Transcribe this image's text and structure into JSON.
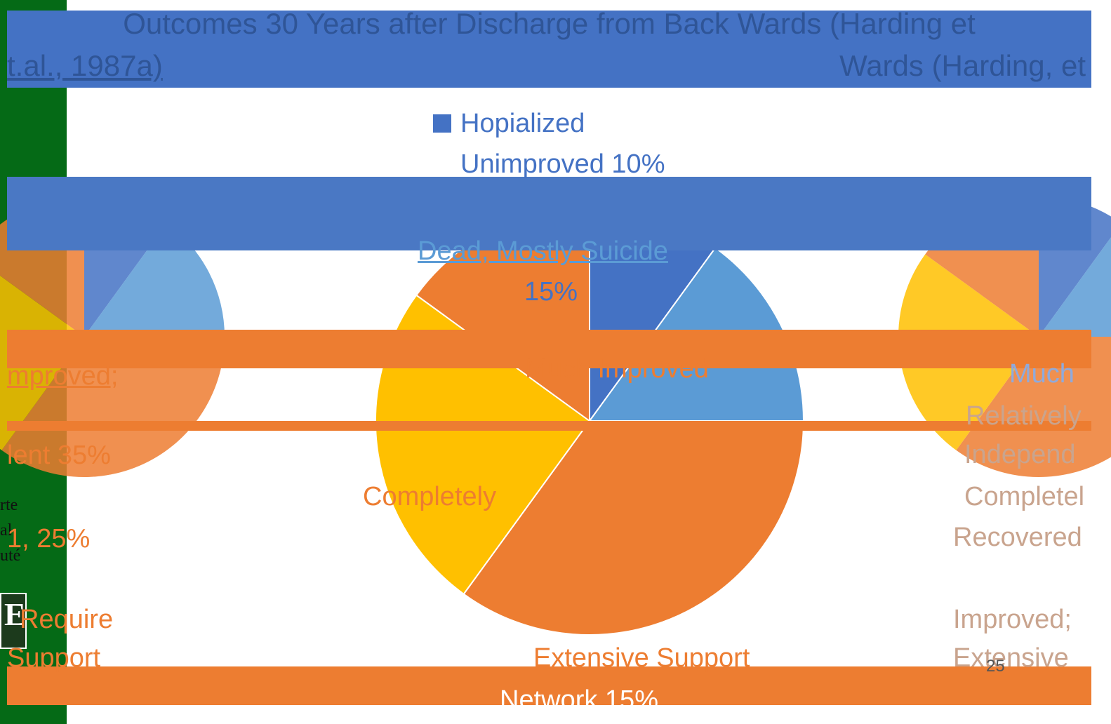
{
  "title": {
    "line1": "Outcomes 30 Years after Discharge from Back Wards (Harding et",
    "line2_left": "t.al., 1987a)",
    "line2_right": "Wards (Harding, et"
  },
  "sidebar": {
    "text": "rte\nal\nuté",
    "logo_glyph": "E"
  },
  "page_number": "25",
  "colors": {
    "sidebar": "#056a16",
    "title_band": "#4472c4",
    "hospitalized": "#4472c4",
    "dead": "#5b9bd5",
    "much_improved": "#ed7d31",
    "improved_extensive": "#ed7d31",
    "recovered": "#ffc000"
  },
  "chart_data": {
    "type": "pie",
    "title": "Outcomes 30 Years after Discharge from Back Wards (Harding et al., 1987a)",
    "categories": [
      "Hopialized Unimproved",
      "Dead, Mostly Suicide",
      "Much Improved, Relatively Independent",
      "Completely Recovered",
      "Improved; Require Extensive Support Network"
    ],
    "values": [
      10,
      15,
      35,
      25,
      15
    ],
    "unit": "%",
    "labels": [
      "Hopialized Unimproved 10%",
      "Dead, Mostly Suicide 15%",
      "Much Improved; Relatively Independent 35%",
      "Completely Recovered 25%",
      "Improved; Require Extensive Support Network 15%"
    ]
  },
  "legend_fragments": {
    "hosp_line1": "Hopialized",
    "hosp_line2": "Unimproved 10%",
    "dead_line1": "Dead, Mostly Suicide",
    "dead_line2": "15%",
    "much_improved": "Much Improved",
    "independent_pct": "lent 35%",
    "mproved": "mproved;",
    "completely": "Completely",
    "pct25": "1, 25%",
    "require": "Require",
    "support": "Support",
    "much_right": "Much",
    "relatively": "Relatively",
    "independ": "Independ",
    "completel_right": "Completel",
    "recovered_right": "Recovered",
    "improved_right": "Improved;",
    "extensive_right": "Extensive",
    "extensive_support": "Extensive Support",
    "network": "Network 15%"
  }
}
